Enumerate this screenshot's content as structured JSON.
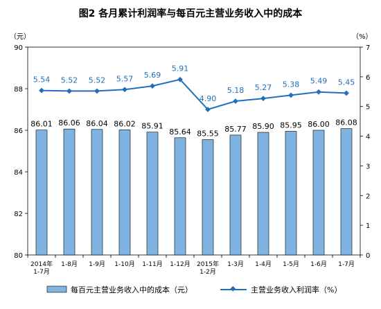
{
  "chart_data": {
    "type": "bar",
    "title": "图2  各月累计利润率与每百元主营业务收入中的成本",
    "y_left_unit": "（元）",
    "y_right_unit": "（%）",
    "categories": [
      [
        "2014年",
        "1-7月"
      ],
      [
        "1-8月"
      ],
      [
        "1-9月"
      ],
      [
        "1-10月"
      ],
      [
        "1-11月"
      ],
      [
        "1-12月"
      ],
      [
        "2015年",
        "1-2月"
      ],
      [
        "1-3月"
      ],
      [
        "1-4月"
      ],
      [
        "1-5月"
      ],
      [
        "1-6月"
      ],
      [
        "1-7月"
      ]
    ],
    "series": [
      {
        "name": "每百元主营业务收入中的成本（元）",
        "type": "bar",
        "axis": "left",
        "color": "#7FB4E0",
        "values": [
          86.01,
          86.06,
          86.04,
          86.02,
          85.91,
          85.64,
          85.55,
          85.77,
          85.9,
          85.95,
          86.0,
          86.08
        ],
        "labels": [
          "86.01",
          "86.06",
          "86.04",
          "86.02",
          "85.91",
          "85.64",
          "85.55",
          "85.77",
          "85.90",
          "85.95",
          "86.00",
          "86.08"
        ]
      },
      {
        "name": "主营业务收入利润率（%）",
        "type": "line",
        "axis": "right",
        "color": "#1F6FBF",
        "values": [
          5.54,
          5.52,
          5.52,
          5.57,
          5.69,
          5.91,
          4.9,
          5.18,
          5.27,
          5.38,
          5.49,
          5.45
        ],
        "labels": [
          "5.54",
          "5.52",
          "5.52",
          "5.57",
          "5.69",
          "5.91",
          "4.90",
          "5.18",
          "5.27",
          "5.38",
          "5.49",
          "5.45"
        ]
      }
    ],
    "y_left": {
      "min": 80,
      "max": 90,
      "ticks": [
        "80",
        "82",
        "84",
        "86",
        "88",
        "90"
      ]
    },
    "y_right": {
      "min": 0,
      "max": 7,
      "ticks": [
        "0",
        "1",
        "2",
        "3",
        "4",
        "5",
        "6",
        "7"
      ]
    },
    "grid": false,
    "legend_position": "bottom"
  }
}
